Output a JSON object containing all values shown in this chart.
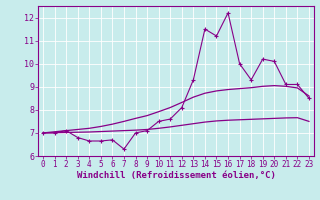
{
  "xlabel": "Windchill (Refroidissement éolien,°C)",
  "bg_color": "#c8ecec",
  "line_color": "#880088",
  "x_min": 0,
  "x_max": 23,
  "y_min": 6,
  "y_max": 12.5,
  "yticks": [
    6,
    7,
    8,
    9,
    10,
    11,
    12
  ],
  "xticks": [
    0,
    1,
    2,
    3,
    4,
    5,
    6,
    7,
    8,
    9,
    10,
    11,
    12,
    13,
    14,
    15,
    16,
    17,
    18,
    19,
    20,
    21,
    22,
    23
  ],
  "data_x": [
    0,
    1,
    2,
    3,
    4,
    5,
    6,
    7,
    8,
    9,
    10,
    11,
    12,
    13,
    14,
    15,
    16,
    17,
    18,
    19,
    20,
    21,
    22,
    23
  ],
  "data_y": [
    7.0,
    7.0,
    7.1,
    6.8,
    6.65,
    6.65,
    6.7,
    6.3,
    7.0,
    7.1,
    7.5,
    7.6,
    8.1,
    9.3,
    11.5,
    11.2,
    12.2,
    10.0,
    9.3,
    10.2,
    10.1,
    9.1,
    9.1,
    8.5
  ],
  "smooth_upper_y": [
    7.0,
    7.05,
    7.1,
    7.15,
    7.2,
    7.28,
    7.38,
    7.5,
    7.63,
    7.75,
    7.92,
    8.1,
    8.32,
    8.55,
    8.72,
    8.82,
    8.88,
    8.92,
    8.96,
    9.02,
    9.05,
    9.02,
    8.95,
    8.6
  ],
  "smooth_lower_y": [
    7.0,
    7.01,
    7.02,
    7.03,
    7.04,
    7.06,
    7.08,
    7.1,
    7.12,
    7.15,
    7.2,
    7.26,
    7.33,
    7.4,
    7.47,
    7.52,
    7.55,
    7.57,
    7.59,
    7.61,
    7.63,
    7.65,
    7.66,
    7.5
  ]
}
